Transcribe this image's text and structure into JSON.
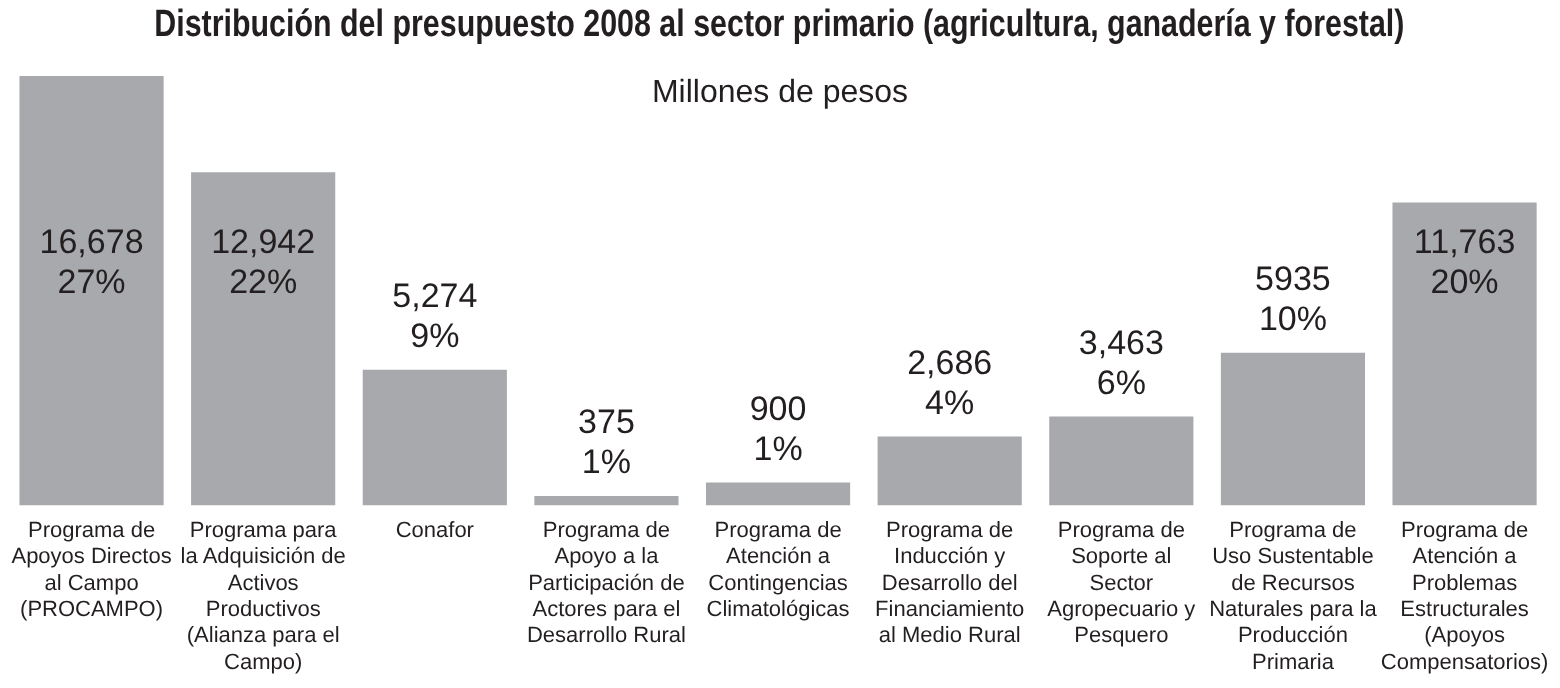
{
  "chart_data": {
    "type": "bar",
    "title": "Distribución del presupuesto 2008 al sector primario (agricultura, ganadería y forestal)",
    "subtitle": "Millones de pesos",
    "categories": [
      "Programa de Apoyos Directos al Campo (PROCAMPO)",
      "Programa para la Adquisición de Activos Productivos (Alianza para el Campo)",
      "Conafor",
      "Programa de Apoyo a la Participación de Actores para el Desarrollo Rural",
      "Programa de Atención a Contingencias Climatológicas",
      "Programa de Inducción y Desarrollo del Financiamiento al Medio Rural",
      "Programa de Soporte al Sector Agropecuario y Pesquero",
      "Programa de Uso Sustentable de Recursos Naturales para la Producción Primaria",
      "Programa de Atención a Problemas Estructurales (Apoyos Compensatorios)"
    ],
    "values": [
      16678,
      12942,
      5274,
      375,
      900,
      2686,
      3463,
      5935,
      11763
    ],
    "value_labels": [
      "16,678\n27%",
      "12,942\n22%",
      "5,274\n9%",
      "375\n1%",
      "900\n1%",
      "2,686\n4%",
      "3,463\n6%",
      "5935\n10%",
      "11,763\n20%"
    ],
    "color": "#a7a9ac",
    "grid": false,
    "legend": false
  }
}
